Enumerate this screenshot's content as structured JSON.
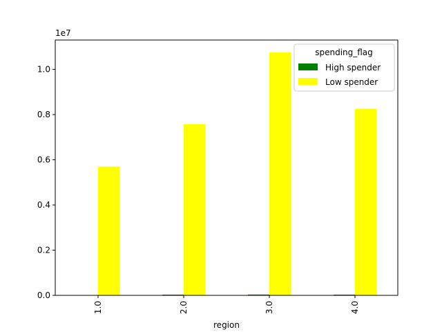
{
  "chart_data": {
    "type": "bar",
    "title": "",
    "xlabel": "region",
    "ylabel": "",
    "scale_label": "1e7",
    "categories": [
      "1.0",
      "2.0",
      "3.0",
      "4.0"
    ],
    "series": [
      {
        "name": "High spender",
        "color": "#008000",
        "values": [
          0,
          30000,
          35000,
          30000
        ]
      },
      {
        "name": "Low spender",
        "color": "#ffff00",
        "values": [
          5700000,
          7580000,
          10750000,
          8260000
        ]
      }
    ],
    "ylim": [
      0,
      11300000
    ],
    "yticks": [
      0,
      2000000,
      4000000,
      6000000,
      8000000,
      10000000
    ],
    "ytick_labels": [
      "0.0",
      "0.2",
      "0.4",
      "0.6",
      "0.8",
      "1.0"
    ],
    "legend": {
      "title": "spending_flag",
      "placement": "top-right"
    },
    "grid": false
  }
}
